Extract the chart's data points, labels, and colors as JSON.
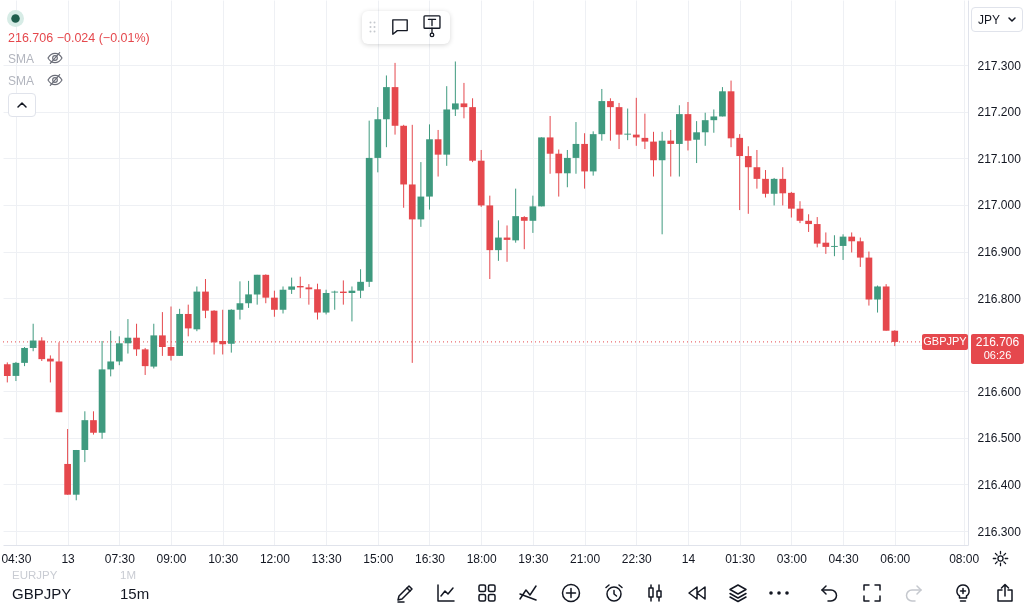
{
  "chart_data": {
    "type": "candlestick",
    "title": "216.706 −0.024 (−0.01%)",
    "ylabel": "JPY",
    "categories": [
      null,
      "04:30",
      null,
      null,
      null,
      null,
      null,
      "13",
      null,
      null,
      null,
      null,
      null,
      "07:30",
      null,
      null,
      null,
      null,
      null,
      "09:00",
      null,
      null,
      null,
      null,
      null,
      "10:30",
      null,
      null,
      null,
      null,
      null,
      "12:00",
      null,
      null,
      null,
      null,
      null,
      "13:30",
      null,
      null,
      null,
      null,
      null,
      "15:00",
      null,
      null,
      null,
      null,
      null,
      "16:30",
      null,
      null,
      null,
      null,
      null,
      "18:00",
      null,
      null,
      null,
      null,
      null,
      "19:30",
      null,
      null,
      null,
      null,
      null,
      "21:00",
      null,
      null,
      null,
      null,
      null,
      "22:30",
      null,
      null,
      null,
      null,
      null,
      "14",
      null,
      null,
      null,
      null,
      null,
      "01:30",
      null,
      null,
      null,
      null,
      null,
      "03:00",
      null,
      null,
      null,
      null,
      null,
      "04:30",
      null,
      null,
      null,
      null,
      null,
      "06:00",
      null,
      null,
      null,
      null,
      null,
      null,
      null,
      "08:00"
    ],
    "ohlc": [
      [
        216.658,
        216.662,
        216.619,
        216.633
      ],
      [
        216.633,
        216.663,
        216.622,
        216.661
      ],
      [
        216.661,
        216.695,
        216.654,
        216.693
      ],
      [
        216.693,
        216.745,
        216.686,
        216.709
      ],
      [
        216.709,
        216.716,
        216.665,
        216.669
      ],
      [
        216.67,
        216.677,
        216.619,
        216.664
      ],
      [
        216.664,
        216.705,
        216.555,
        216.555
      ],
      [
        216.444,
        216.519,
        216.378,
        216.378
      ],
      [
        216.378,
        216.474,
        216.366,
        216.474
      ],
      [
        216.474,
        216.557,
        216.448,
        216.538
      ],
      [
        216.538,
        216.557,
        216.507,
        216.511
      ],
      [
        216.511,
        216.708,
        216.498,
        216.647
      ],
      [
        216.647,
        216.73,
        216.632,
        216.664
      ],
      [
        216.664,
        216.718,
        216.656,
        216.703
      ],
      [
        216.703,
        216.755,
        216.681,
        216.715
      ],
      [
        216.715,
        216.745,
        216.676,
        216.69
      ],
      [
        216.69,
        216.693,
        216.635,
        216.654
      ],
      [
        216.653,
        216.745,
        216.649,
        216.72
      ],
      [
        216.72,
        216.77,
        216.676,
        216.695
      ],
      [
        216.695,
        216.782,
        216.666,
        216.676
      ],
      [
        216.676,
        216.777,
        216.676,
        216.766
      ],
      [
        216.766,
        216.786,
        216.718,
        216.735
      ],
      [
        216.733,
        216.825,
        216.729,
        216.814
      ],
      [
        216.814,
        216.841,
        216.757,
        216.773
      ],
      [
        216.773,
        216.774,
        216.679,
        216.705
      ],
      [
        216.708,
        216.775,
        216.679,
        216.701
      ],
      [
        216.702,
        216.776,
        216.683,
        216.775
      ],
      [
        216.775,
        216.836,
        216.754,
        216.789
      ],
      [
        216.789,
        216.837,
        216.779,
        216.808
      ],
      [
        216.808,
        216.85,
        216.786,
        216.85
      ],
      [
        216.85,
        216.851,
        216.789,
        216.801
      ],
      [
        216.801,
        216.816,
        216.76,
        216.775
      ],
      [
        216.775,
        216.825,
        216.767,
        216.818
      ],
      [
        216.818,
        216.844,
        216.809,
        216.825
      ],
      [
        216.826,
        216.846,
        216.8,
        216.823
      ],
      [
        216.823,
        216.83,
        216.786,
        216.819
      ],
      [
        216.819,
        216.831,
        216.754,
        216.769
      ],
      [
        216.769,
        216.818,
        216.765,
        216.811
      ],
      [
        216.812,
        216.816,
        216.775,
        216.814
      ],
      [
        216.814,
        216.838,
        216.786,
        216.811
      ],
      [
        216.811,
        216.825,
        216.75,
        216.816
      ],
      [
        216.816,
        216.862,
        216.8,
        216.835
      ],
      [
        216.835,
        217.181,
        216.824,
        217.101
      ],
      [
        217.101,
        217.21,
        217.07,
        217.184
      ],
      [
        217.184,
        217.278,
        217.124,
        217.253
      ],
      [
        217.253,
        217.305,
        217.151,
        217.17
      ],
      [
        217.17,
        217.172,
        216.994,
        217.044
      ],
      [
        217.044,
        217.172,
        216.661,
        216.969
      ],
      [
        216.969,
        217.092,
        216.953,
        217.018
      ],
      [
        217.018,
        217.173,
        216.99,
        217.141
      ],
      [
        217.141,
        217.161,
        217.061,
        217.108
      ],
      [
        217.108,
        217.255,
        217.084,
        217.205
      ],
      [
        217.205,
        217.308,
        217.191,
        217.218
      ],
      [
        217.218,
        217.262,
        217.186,
        217.21
      ],
      [
        217.21,
        217.229,
        217.092,
        217.095
      ],
      [
        217.095,
        217.118,
        216.996,
        216.999
      ],
      [
        216.999,
        217.02,
        216.841,
        216.903
      ],
      [
        216.903,
        216.967,
        216.88,
        216.93
      ],
      [
        216.93,
        216.956,
        216.878,
        216.925
      ],
      [
        216.924,
        217.035,
        216.919,
        216.976
      ],
      [
        216.974,
        216.976,
        216.905,
        216.966
      ],
      [
        216.966,
        217.02,
        216.94,
        216.997
      ],
      [
        216.997,
        217.145,
        216.997,
        217.145
      ],
      [
        217.145,
        217.191,
        217.067,
        217.11
      ],
      [
        217.11,
        217.119,
        217.018,
        217.068
      ],
      [
        217.068,
        217.118,
        217.038,
        217.101
      ],
      [
        217.101,
        217.178,
        217.067,
        217.131
      ],
      [
        217.131,
        217.154,
        217.035,
        217.072
      ],
      [
        217.072,
        217.158,
        217.063,
        217.152
      ],
      [
        217.152,
        217.249,
        217.138,
        217.223
      ],
      [
        217.223,
        217.229,
        217.138,
        217.21
      ],
      [
        217.21,
        217.219,
        217.12,
        217.151
      ],
      [
        217.151,
        217.207,
        217.139,
        217.153
      ],
      [
        217.151,
        217.23,
        217.127,
        217.145
      ],
      [
        217.144,
        217.196,
        217.12,
        217.136
      ],
      [
        217.136,
        217.157,
        217.061,
        217.096
      ],
      [
        217.096,
        217.157,
        216.937,
        217.138
      ],
      [
        217.138,
        217.161,
        217.061,
        217.131
      ],
      [
        217.131,
        217.214,
        217.061,
        217.195
      ],
      [
        217.195,
        217.221,
        217.117,
        217.138
      ],
      [
        217.14,
        217.18,
        217.09,
        217.156
      ],
      [
        217.156,
        217.198,
        217.127,
        217.182
      ],
      [
        217.182,
        217.205,
        217.155,
        217.19
      ],
      [
        217.19,
        217.253,
        217.19,
        217.244
      ],
      [
        217.244,
        217.267,
        217.124,
        217.143
      ],
      [
        217.144,
        217.152,
        216.989,
        217.105
      ],
      [
        217.105,
        217.126,
        216.981,
        217.081
      ],
      [
        217.081,
        217.118,
        217.035,
        217.056
      ],
      [
        217.056,
        217.075,
        217.016,
        217.024
      ],
      [
        217.024,
        217.058,
        216.999,
        217.056
      ],
      [
        217.056,
        217.081,
        216.999,
        217.025
      ],
      [
        217.026,
        217.028,
        216.973,
        216.992
      ],
      [
        216.992,
        217.008,
        216.961,
        216.966
      ],
      [
        216.966,
        216.98,
        216.942,
        216.959
      ],
      [
        216.959,
        216.974,
        216.909,
        216.917
      ],
      [
        216.919,
        216.941,
        216.895,
        216.91
      ],
      [
        216.91,
        216.935,
        216.89,
        216.912
      ],
      [
        216.912,
        216.937,
        216.882,
        216.932
      ],
      [
        216.932,
        216.941,
        216.898,
        216.922
      ],
      [
        216.922,
        216.93,
        216.867,
        216.887
      ],
      [
        216.887,
        216.9,
        216.784,
        216.797
      ],
      [
        216.797,
        216.827,
        216.769,
        216.825
      ],
      [
        216.825,
        216.83,
        216.73,
        216.73
      ],
      [
        216.73,
        216.731,
        216.697,
        216.706
      ],
      null,
      null,
      null,
      null,
      null,
      null,
      null,
      null
    ],
    "colors": [
      "#e5484d",
      "#3f9a7f",
      "#3f9a7f",
      "#3f9a7f",
      "#e5484d",
      "#e5484d",
      "#e5484d",
      "#e5484d",
      "#3f9a7f",
      "#3f9a7f",
      "#e5484d",
      "#3f9a7f",
      "#3f9a7f",
      "#3f9a7f",
      "#3f9a7f",
      "#e5484d",
      "#e5484d",
      "#3f9a7f",
      "#e5484d",
      "#e5484d",
      "#3f9a7f",
      "#e5484d",
      "#3f9a7f",
      "#e5484d",
      "#e5484d",
      "#e5484d",
      "#3f9a7f",
      "#3f9a7f",
      "#3f9a7f",
      "#3f9a7f",
      "#e5484d",
      "#e5484d",
      "#3f9a7f",
      "#3f9a7f",
      "#e5484d",
      "#e5484d",
      "#e5484d",
      "#3f9a7f",
      "#3f9a7f",
      "#e5484d",
      "#3f9a7f",
      "#3f9a7f",
      "#3f9a7f",
      "#3f9a7f",
      "#3f9a7f",
      "#e5484d",
      "#e5484d",
      "#e5484d",
      "#3f9a7f",
      "#3f9a7f",
      "#e5484d",
      "#3f9a7f",
      "#3f9a7f",
      "#e5484d",
      "#e5484d",
      "#e5484d",
      "#e5484d",
      "#3f9a7f",
      "#e5484d",
      "#3f9a7f",
      "#e5484d",
      "#3f9a7f",
      "#3f9a7f",
      "#e5484d",
      "#e5484d",
      "#3f9a7f",
      "#3f9a7f",
      "#e5484d",
      "#3f9a7f",
      "#3f9a7f",
      "#e5484d",
      "#e5484d",
      "#3f9a7f",
      "#e5484d",
      "#e5484d",
      "#e5484d",
      "#3f9a7f",
      "#e5484d",
      "#3f9a7f",
      "#e5484d",
      "#3f9a7f",
      "#3f9a7f",
      "#3f9a7f",
      "#3f9a7f",
      "#e5484d",
      "#e5484d",
      "#e5484d",
      "#e5484d",
      "#e5484d",
      "#3f9a7f",
      "#e5484d",
      "#e5484d",
      "#e5484d",
      "#e5484d",
      "#e5484d",
      "#e5484d",
      "#3f9a7f",
      "#3f9a7f",
      "#e5484d",
      "#e5484d",
      "#e5484d",
      "#3f9a7f",
      "#e5484d",
      "#e5484d",
      null,
      null,
      null,
      null,
      null,
      null,
      null,
      null
    ],
    "ylim": [
      216.27,
      217.44
    ],
    "yticks": [
      {
        "value": 216.3,
        "label": "216.300"
      },
      {
        "value": 216.4,
        "label": "216.400"
      },
      {
        "value": 216.5,
        "label": "216.500"
      },
      {
        "value": 216.6,
        "label": "216.600"
      },
      {
        "value": 216.7,
        "label": null
      },
      {
        "value": 216.8,
        "label": "216.800"
      },
      {
        "value": 216.9,
        "label": "216.900"
      },
      {
        "value": 217,
        "label": "217.000"
      },
      {
        "value": 217.1,
        "label": "217.100"
      },
      {
        "value": 217.2,
        "label": "217.200"
      },
      {
        "value": 217.3,
        "label": "217.300"
      }
    ],
    "grid": true,
    "ref_lines": [
      {
        "axis": "y",
        "value": 216.706,
        "label": "GBPJPY",
        "color": "#e5484d",
        "line_style": "dotted"
      }
    ],
    "annotations": [
      "SMA",
      "SMA",
      "06:26",
      "EURJPY",
      "1M",
      "GBPJPY",
      "15m",
      "216.706"
    ]
  }
}
